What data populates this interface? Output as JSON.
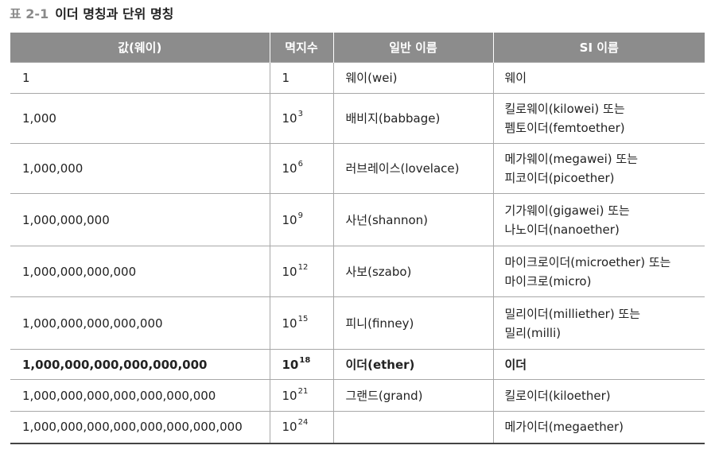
{
  "caption": {
    "label": "표 2-1",
    "title": "이더 명칭과 단위 명칭"
  },
  "headers": [
    "값(웨이)",
    "멱지수",
    "일반 이름",
    "SI 이름"
  ],
  "rows": [
    {
      "value": "1",
      "base": "1",
      "exp": "",
      "common": "웨이(wei)",
      "si_line1": "웨이",
      "si_line2": ""
    },
    {
      "value": "1,000",
      "base": "10",
      "exp": "3",
      "common": "배비지(babbage)",
      "si_line1": "킬로웨이(kilowei) 또는",
      "si_line2": "펨토이더(femtoether)"
    },
    {
      "value": "1,000,000",
      "base": "10",
      "exp": "6",
      "common": "러브레이스(lovelace)",
      "si_line1": "메가웨이(megawei) 또는",
      "si_line2": "피코이더(picoether)"
    },
    {
      "value": "1,000,000,000",
      "base": "10",
      "exp": "9",
      "common": "사넌(shannon)",
      "si_line1": "기가웨이(gigawei) 또는",
      "si_line2": "나노이더(nanoether)"
    },
    {
      "value": "1,000,000,000,000",
      "base": "10",
      "exp": "12",
      "common": "사보(szabo)",
      "si_line1": "마이크로이더(microether) 또는",
      "si_line2": "마이크로(micro)"
    },
    {
      "value": "1,000,000,000,000,000",
      "base": "10",
      "exp": "15",
      "common": "피니(finney)",
      "si_line1": "밀리이더(milliether) 또는",
      "si_line2": "밀리(milli)"
    },
    {
      "value": "1,000,000,000,000,000,000",
      "base": "10",
      "exp": "18",
      "common": "이더(ether)",
      "si_line1": "이더",
      "si_line2": ""
    },
    {
      "value": "1,000,000,000,000,000,000,000",
      "base": "10",
      "exp": "21",
      "common": "그랜드(grand)",
      "si_line1": "킬로이더(kiloether)",
      "si_line2": ""
    },
    {
      "value": "1,000,000,000,000,000,000,000,000",
      "base": "10",
      "exp": "24",
      "common": "",
      "si_line1": "메가이더(megaether)",
      "si_line2": ""
    }
  ],
  "highlighted_row_index": 6
}
